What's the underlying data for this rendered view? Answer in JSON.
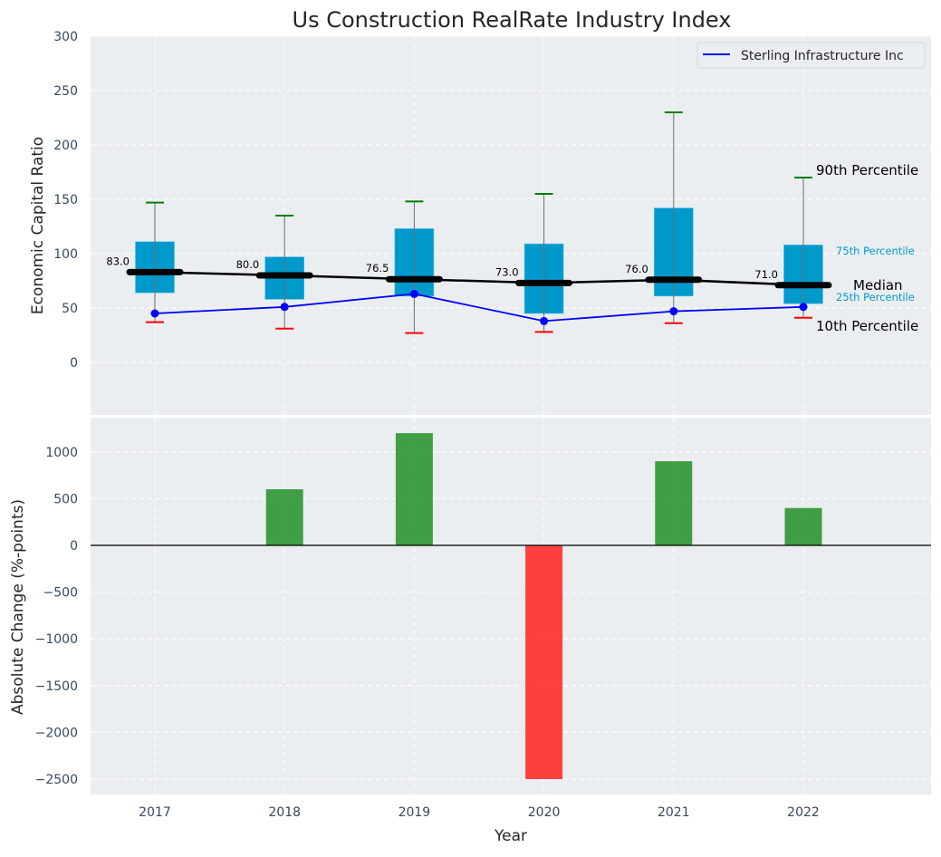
{
  "chart_data": [
    {
      "type": "box",
      "title": "Us Construction RealRate Industry Index",
      "xlabel": "",
      "ylabel": "Economic Capital Ratio",
      "ylim": [
        -50,
        300
      ],
      "yticks": [
        0,
        50,
        100,
        150,
        200,
        250,
        300
      ],
      "categories": [
        "2017",
        "2018",
        "2019",
        "2020",
        "2021",
        "2022"
      ],
      "grid": true,
      "legend": {
        "position": "top-right",
        "entries": [
          "Sterling Infrastructure Inc"
        ]
      },
      "percentiles": {
        "p10": [
          37,
          31,
          27,
          28,
          36,
          41
        ],
        "p25": [
          64,
          58,
          61,
          45,
          61,
          54
        ],
        "median": [
          83.0,
          80.0,
          76.5,
          73.0,
          76.0,
          71.0
        ],
        "p75": [
          111,
          97,
          123,
          109,
          142,
          108
        ],
        "p90": [
          147,
          135,
          148,
          155,
          230,
          170
        ]
      },
      "median_labels": [
        "83.0",
        "80.0",
        "76.5",
        "73.0",
        "76.0",
        "71.0"
      ],
      "series": [
        {
          "name": "Sterling Infrastructure Inc",
          "values": [
            45,
            51,
            63,
            38,
            47,
            51
          ],
          "color": "#0000ff"
        }
      ],
      "annotations": {
        "p90": "90th Percentile",
        "p75": "75th Percentile",
        "median": "Median",
        "p25": "25th Percentile",
        "p10": "10th Percentile"
      },
      "colors": {
        "box": "#0099cc",
        "median": "#000000",
        "p90_cap": "#008000",
        "p10_cap": "#ff0000",
        "pct_label": "#0099cc",
        "panel_bg": "#eaeef0"
      }
    },
    {
      "type": "bar",
      "xlabel": "Year",
      "ylabel": "Absolute Change (%-points)",
      "ylim": [
        -2650,
        1400
      ],
      "yticks": [
        -2500,
        -2000,
        -1500,
        -1000,
        -500,
        0,
        500,
        1000
      ],
      "ytick_labels": [
        "−2500",
        "−2000",
        "−1500",
        "−1000",
        "−500",
        "0",
        "500",
        "1000"
      ],
      "categories": [
        "2017",
        "2018",
        "2019",
        "2020",
        "2021",
        "2022"
      ],
      "values": [
        0,
        600,
        1200,
        -2500,
        900,
        400
      ],
      "grid": true,
      "colors": {
        "positive": "#2e9632",
        "negative": "#ff2b2b"
      }
    }
  ]
}
